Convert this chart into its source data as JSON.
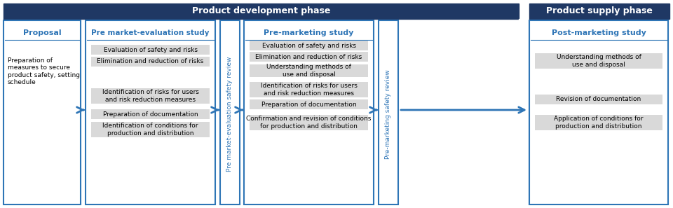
{
  "fig_width": 9.6,
  "fig_height": 2.97,
  "dpi": 100,
  "bg_color": "#ffffff",
  "dark_blue": "#1f3864",
  "medium_blue": "#2e75b6",
  "light_blue_text": "#2e75b6",
  "gray_box": "#d9d9d9",
  "white": "#ffffff",
  "header_text_color": "#ffffff",
  "phase_header_bg": "#1f3864",
  "phase1_title": "Product development phase",
  "phase2_title": "Product supply phase",
  "col1_title": "Proposal",
  "col2_title": "Pre market-evaluation study",
  "col3_title": "Pre-marketing study",
  "col4_title": "Post-marketing study",
  "review1_title": "Pre market-evaluation safety review",
  "review2_title": "Pre-marketing safety review",
  "col1_items": [
    "Preparation of measures to secure product safety, setting schedule"
  ],
  "col2_items": [
    "Evaluation of safety and risks",
    "Elimination and reduction of risks",
    "",
    "Identification of risks for users and risk reduction measures",
    "Preparation of documentation",
    "Identification of conditions for production and distribution"
  ],
  "col3_items": [
    "Evaluation of safety and risks",
    "Elimination and reduction of risks",
    "Understanding methods of use and disposal",
    "Identification of risks for users and risk reduction measures",
    "Preparation of documentation",
    "Confirmation and revision of conditions for production and distribution"
  ],
  "col4_items": [
    "Understanding methods of use and disposal",
    "",
    "Revision of documentation",
    "Application of conditions for production and distribution"
  ]
}
